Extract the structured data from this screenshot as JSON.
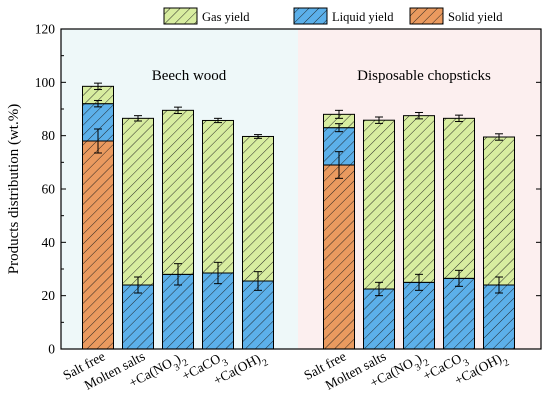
{
  "colors": {
    "gas": "#d8eda0",
    "liquid": "#5cb0ea",
    "solid": "#ea9a5f",
    "group1_bg": "#eef8f9",
    "group2_bg": "#fcefef"
  },
  "chart_data": {
    "type": "bar",
    "stacked": true,
    "title": "",
    "xlabel": "",
    "ylabel": "Products distribution (wt.%)",
    "ylim": [
      0,
      120
    ],
    "yticks": [
      "0",
      "20",
      "40",
      "60",
      "80",
      "100",
      "120"
    ],
    "legend": {
      "placement": "top-center",
      "entries": [
        {
          "key": "gas",
          "label": "Gas yield"
        },
        {
          "key": "liquid",
          "label": "Liquid yield"
        },
        {
          "key": "solid",
          "label": "Solid yield"
        }
      ]
    },
    "groups": [
      {
        "label": "Beech wood",
        "bars": [
          {
            "category": "Salt free",
            "solid": 78,
            "solid_err": 4.5,
            "liquid": 14,
            "liquid_err": 1.2,
            "gas": 6.5,
            "gas_err": 1.2
          },
          {
            "category": "Molten salts",
            "liquid": 24,
            "liquid_err": 3.0,
            "gas": 62.5,
            "gas_err": 1.0
          },
          {
            "category": "+Ca(NO3)2",
            "label_base": "+Ca(NO",
            "label_sub1": "3",
            "label_mid": ")",
            "label_sub2": "2",
            "liquid": 28,
            "liquid_err": 4.0,
            "gas": 61.5,
            "gas_err": 1.2
          },
          {
            "category": "+CaCO3",
            "label_base": "+CaCO",
            "label_sub1": "3",
            "label_mid": "",
            "label_sub2": "",
            "liquid": 28.5,
            "liquid_err": 4.0,
            "gas": 57.2,
            "gas_err": 0.8
          },
          {
            "category": "+Ca(OH)2",
            "label_base": "+Ca(OH)",
            "label_sub1": "",
            "label_mid": "",
            "label_sub2": "2",
            "liquid": 25.5,
            "liquid_err": 3.5,
            "gas": 54.2,
            "gas_err": 0.7
          }
        ]
      },
      {
        "label": "Disposable chopsticks",
        "bars": [
          {
            "category": "Salt free",
            "solid": 69,
            "solid_err": 5.0,
            "liquid": 14,
            "liquid_err": 1.5,
            "gas": 5,
            "gas_err": 1.5
          },
          {
            "category": "Molten salts",
            "liquid": 22.5,
            "liquid_err": 2.5,
            "gas": 63.3,
            "gas_err": 1.2
          },
          {
            "category": "+Ca(NO3)2",
            "label_base": "+Ca(NO",
            "label_sub1": "3",
            "label_mid": ")",
            "label_sub2": "2",
            "liquid": 25,
            "liquid_err": 3.0,
            "gas": 62.5,
            "gas_err": 1.2
          },
          {
            "category": "+CaCO3",
            "label_base": "+CaCO",
            "label_sub1": "3",
            "label_mid": "",
            "label_sub2": "",
            "liquid": 26.5,
            "liquid_err": 3.0,
            "gas": 60,
            "gas_err": 1.2
          },
          {
            "category": "+Ca(OH)2",
            "label_base": "+Ca(OH)",
            "label_sub1": "",
            "label_mid": "",
            "label_sub2": "2",
            "liquid": 24,
            "liquid_err": 3.0,
            "gas": 55.5,
            "gas_err": 1.2
          }
        ]
      }
    ]
  }
}
